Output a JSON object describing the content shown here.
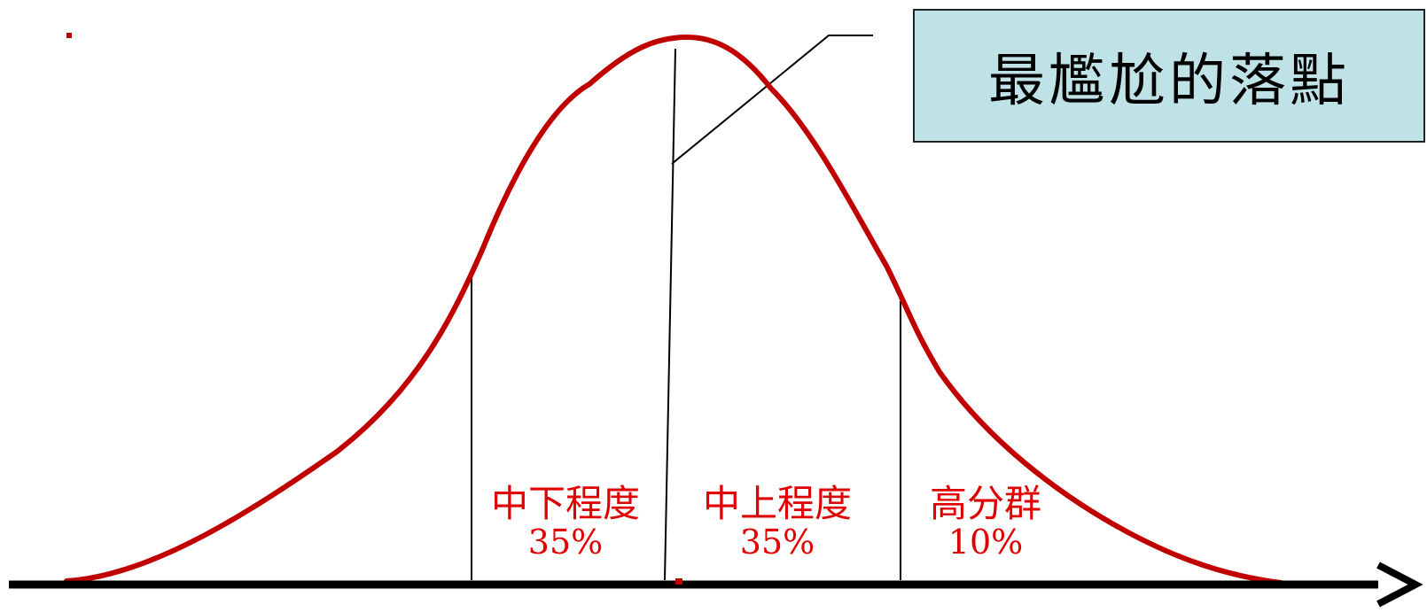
{
  "callout": {
    "text": "最尷尬的落點"
  },
  "regions": [
    {
      "id": "lower-mid",
      "name": "中下程度",
      "percent": "35%"
    },
    {
      "id": "upper-mid",
      "name": "中上程度",
      "percent": "35%"
    },
    {
      "id": "high",
      "name": "高分群",
      "percent": "10%"
    }
  ],
  "colors": {
    "curve": "#c00000",
    "label": "#e00000",
    "axis": "#000000",
    "callout_bg": "#bfe2e6"
  }
}
